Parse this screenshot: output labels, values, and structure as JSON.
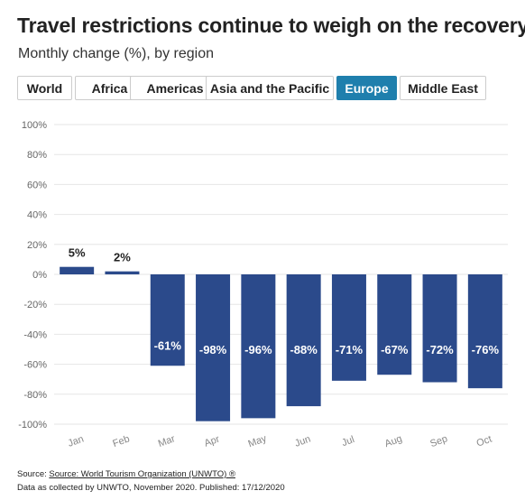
{
  "title": "Travel restrictions continue to weigh on the recovery",
  "subtitle": "Monthly change (%), by region",
  "tabs": [
    {
      "label": "World",
      "active": false
    },
    {
      "label": "Africa",
      "active": false
    },
    {
      "label": "Americas",
      "active": false
    },
    {
      "label": "Asia and the Pacific",
      "active": false
    },
    {
      "label": "Europe",
      "active": true
    },
    {
      "label": "Middle East",
      "active": false
    }
  ],
  "colors": {
    "bar": "#2b4a8b",
    "active_tab": "#1f7fad",
    "grid": "#e6e6e6"
  },
  "chart_data": {
    "type": "bar",
    "categories": [
      "Jan",
      "Feb",
      "Mar",
      "Apr",
      "May",
      "Jun",
      "Jul",
      "Aug",
      "Sep",
      "Oct"
    ],
    "values": [
      5,
      2,
      -61,
      -98,
      -96,
      -88,
      -71,
      -67,
      -72,
      -76
    ],
    "data_labels": [
      "5%",
      "2%",
      "-61%",
      "-98%",
      "-96%",
      "-88%",
      "-71%",
      "-67%",
      "-72%",
      "-76%"
    ],
    "ylim": [
      -100,
      100
    ],
    "yticks": [
      100,
      80,
      60,
      40,
      20,
      0,
      -20,
      -40,
      -60,
      -80,
      -100
    ],
    "ytick_labels": [
      "100%",
      "80%",
      "60%",
      "40%",
      "20%",
      "0%",
      "-20%",
      "-40%",
      "-60%",
      "-80%",
      "-100%"
    ],
    "grid": true,
    "legend": false,
    "xlabel": "",
    "ylabel": ""
  },
  "footer": {
    "source_prefix": "Source: ",
    "source_link": "Source: World Tourism Organization (UNWTO) ®",
    "note": "Data as collected by UNWTO, November 2020. Published: 17/12/2020"
  }
}
